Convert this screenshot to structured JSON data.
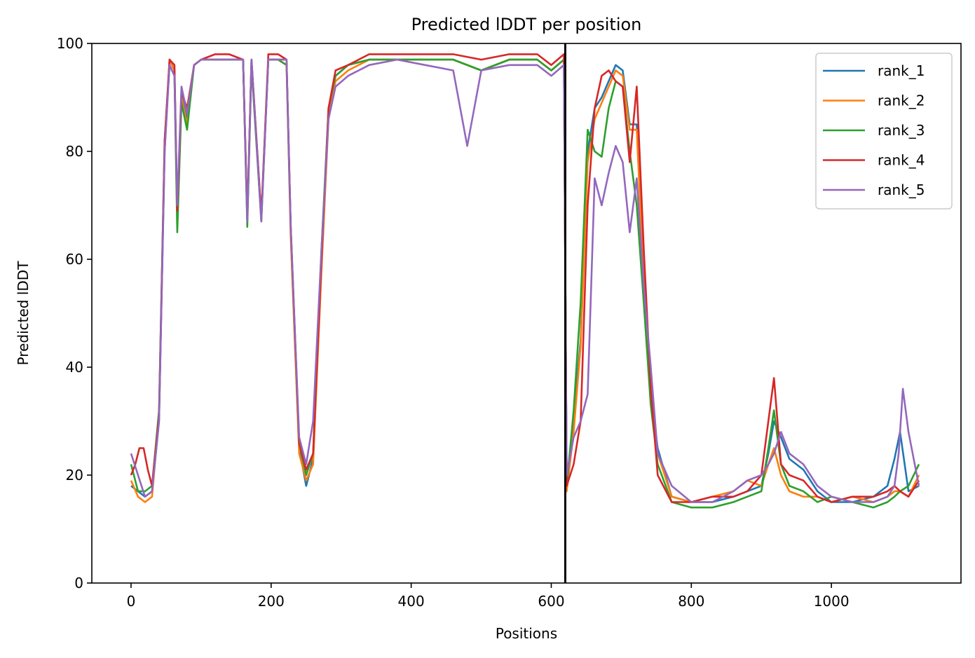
{
  "chart_data": {
    "type": "line",
    "title": "Predicted lDDT per position",
    "xlabel": "Positions",
    "ylabel": "Predicted lDDT",
    "xlim": [
      -56,
      1185
    ],
    "ylim": [
      0,
      100
    ],
    "xticks": [
      0,
      200,
      400,
      600,
      800,
      1000
    ],
    "yticks": [
      0,
      20,
      40,
      60,
      80,
      100
    ],
    "xtick_labels": [
      "0",
      "200",
      "400",
      "600",
      "800",
      "1000"
    ],
    "ytick_labels": [
      "0",
      "20",
      "40",
      "60",
      "80",
      "100"
    ],
    "grid": false,
    "legend_position": "top-right",
    "vertical_line": {
      "x": 620,
      "color": "#000000"
    },
    "colors": {
      "rank_1": "#1f77b4",
      "rank_2": "#ff7f0e",
      "rank_3": "#2ca02c",
      "rank_4": "#d62728",
      "rank_5": "#9467bd"
    },
    "series": [
      {
        "name": "rank_1",
        "x": [
          0,
          10,
          20,
          30,
          40,
          48,
          55,
          62,
          66,
          72,
          80,
          90,
          100,
          120,
          140,
          160,
          166,
          172,
          186,
          196,
          210,
          222,
          228,
          240,
          250,
          260,
          272,
          282,
          292,
          310,
          340,
          380,
          420,
          460,
          500,
          540,
          580,
          600,
          618,
          622,
          632,
          642,
          652,
          662,
          672,
          682,
          692,
          702,
          712,
          722,
          732,
          742,
          752,
          772,
          800,
          830,
          860,
          880,
          900,
          910,
          918,
          928,
          940,
          960,
          980,
          1000,
          1030,
          1060,
          1080,
          1090,
          1098,
          1110,
          1125
        ],
        "y": [
          18,
          17,
          16,
          17,
          30,
          80,
          97,
          95,
          68,
          91,
          86,
          96,
          97,
          97,
          97,
          97,
          67,
          97,
          68,
          97,
          97,
          97,
          65,
          25,
          18,
          23,
          60,
          87,
          94,
          96,
          97,
          97,
          97,
          97,
          95,
          97,
          97,
          95,
          97,
          19,
          30,
          45,
          80,
          88,
          90,
          93,
          96,
          95,
          85,
          85,
          55,
          35,
          25,
          16,
          15,
          15,
          16,
          17,
          18,
          24,
          30,
          27,
          23,
          21,
          17,
          15,
          15,
          16,
          18,
          23,
          28,
          17,
          18
        ]
      },
      {
        "name": "rank_2",
        "x": [
          0,
          10,
          20,
          30,
          40,
          48,
          55,
          62,
          66,
          72,
          80,
          90,
          100,
          120,
          140,
          160,
          166,
          172,
          186,
          196,
          210,
          222,
          228,
          240,
          250,
          260,
          272,
          282,
          292,
          310,
          340,
          380,
          420,
          460,
          500,
          540,
          580,
          600,
          618,
          622,
          632,
          642,
          652,
          662,
          672,
          682,
          692,
          702,
          712,
          722,
          732,
          742,
          752,
          772,
          800,
          830,
          860,
          880,
          900,
          910,
          918,
          928,
          940,
          960,
          980,
          1000,
          1030,
          1060,
          1080,
          1090,
          1098,
          1110,
          1125
        ],
        "y": [
          19,
          16,
          15,
          16,
          31,
          81,
          97,
          95,
          67,
          90,
          85,
          96,
          97,
          97,
          97,
          97,
          68,
          96,
          68,
          97,
          97,
          96,
          64,
          24,
          19,
          22,
          58,
          86,
          93,
          95,
          97,
          97,
          97,
          97,
          95,
          97,
          97,
          95,
          97,
          17,
          28,
          44,
          78,
          86,
          89,
          92,
          95,
          94,
          84,
          84,
          56,
          34,
          24,
          16,
          15,
          16,
          17,
          19,
          18,
          22,
          25,
          20,
          17,
          16,
          16,
          15,
          16,
          15,
          16,
          17,
          17,
          16,
          20
        ]
      },
      {
        "name": "rank_3",
        "x": [
          0,
          10,
          20,
          30,
          40,
          48,
          55,
          62,
          66,
          72,
          80,
          90,
          100,
          120,
          140,
          160,
          166,
          172,
          186,
          196,
          210,
          222,
          228,
          240,
          250,
          260,
          272,
          282,
          292,
          310,
          340,
          380,
          420,
          460,
          500,
          540,
          580,
          600,
          618,
          622,
          632,
          642,
          652,
          662,
          672,
          682,
          692,
          702,
          712,
          722,
          732,
          742,
          752,
          772,
          800,
          830,
          860,
          880,
          900,
          910,
          918,
          928,
          940,
          960,
          980,
          1000,
          1030,
          1060,
          1080,
          1090,
          1098,
          1110,
          1125
        ],
        "y": [
          22,
          17,
          17,
          18,
          32,
          82,
          96,
          94,
          65,
          89,
          84,
          96,
          97,
          97,
          97,
          97,
          66,
          96,
          67,
          97,
          97,
          96,
          66,
          26,
          20,
          24,
          62,
          88,
          94,
          96,
          97,
          97,
          97,
          97,
          95,
          97,
          97,
          95,
          97,
          18,
          32,
          52,
          84,
          80,
          79,
          88,
          93,
          92,
          80,
          70,
          52,
          33,
          22,
          15,
          14,
          14,
          15,
          16,
          17,
          25,
          32,
          22,
          18,
          17,
          15,
          16,
          15,
          14,
          15,
          16,
          17,
          18,
          22
        ]
      },
      {
        "name": "rank_4",
        "x": [
          0,
          6,
          12,
          18,
          24,
          30,
          40,
          48,
          55,
          62,
          66,
          72,
          80,
          90,
          100,
          120,
          140,
          160,
          166,
          172,
          186,
          196,
          210,
          222,
          228,
          240,
          250,
          260,
          272,
          282,
          292,
          310,
          340,
          380,
          420,
          460,
          500,
          540,
          580,
          600,
          618,
          622,
          632,
          642,
          652,
          662,
          672,
          682,
          692,
          702,
          712,
          722,
          732,
          742,
          752,
          772,
          800,
          830,
          860,
          880,
          900,
          910,
          918,
          928,
          940,
          960,
          980,
          1000,
          1030,
          1060,
          1080,
          1090,
          1098,
          1110,
          1125
        ],
        "y": [
          20,
          22,
          25,
          25,
          21,
          18,
          31,
          82,
          97,
          96,
          69,
          91,
          88,
          96,
          97,
          98,
          98,
          97,
          68,
          97,
          68,
          98,
          98,
          97,
          66,
          26,
          21,
          24,
          60,
          88,
          95,
          96,
          98,
          98,
          98,
          98,
          97,
          98,
          98,
          96,
          98,
          18,
          22,
          30,
          70,
          88,
          94,
          95,
          93,
          92,
          78,
          92,
          62,
          36,
          20,
          15,
          15,
          16,
          16,
          17,
          20,
          30,
          38,
          22,
          20,
          19,
          16,
          15,
          16,
          16,
          17,
          18,
          17,
          16,
          19
        ]
      },
      {
        "name": "rank_5",
        "x": [
          0,
          10,
          20,
          30,
          40,
          48,
          55,
          62,
          66,
          72,
          80,
          90,
          100,
          120,
          140,
          160,
          166,
          172,
          186,
          196,
          210,
          222,
          228,
          240,
          250,
          260,
          272,
          282,
          292,
          310,
          340,
          380,
          420,
          460,
          480,
          500,
          540,
          580,
          600,
          618,
          622,
          632,
          642,
          652,
          662,
          672,
          682,
          692,
          702,
          712,
          722,
          732,
          742,
          752,
          772,
          800,
          830,
          860,
          880,
          900,
          910,
          918,
          928,
          940,
          960,
          980,
          1000,
          1030,
          1060,
          1080,
          1090,
          1096,
          1102,
          1110,
          1125
        ],
        "y": [
          24,
          20,
          16,
          17,
          30,
          80,
          96,
          94,
          70,
          92,
          87,
          96,
          97,
          97,
          97,
          97,
          67,
          97,
          67,
          97,
          97,
          97,
          66,
          27,
          22,
          30,
          62,
          86,
          92,
          94,
          96,
          97,
          96,
          95,
          81,
          95,
          96,
          96,
          94,
          96,
          20,
          27,
          30,
          35,
          75,
          70,
          76,
          81,
          78,
          65,
          75,
          55,
          40,
          24,
          18,
          15,
          15,
          17,
          19,
          20,
          22,
          24,
          28,
          24,
          22,
          18,
          16,
          15,
          15,
          16,
          18,
          24,
          36,
          28,
          18
        ]
      }
    ]
  }
}
